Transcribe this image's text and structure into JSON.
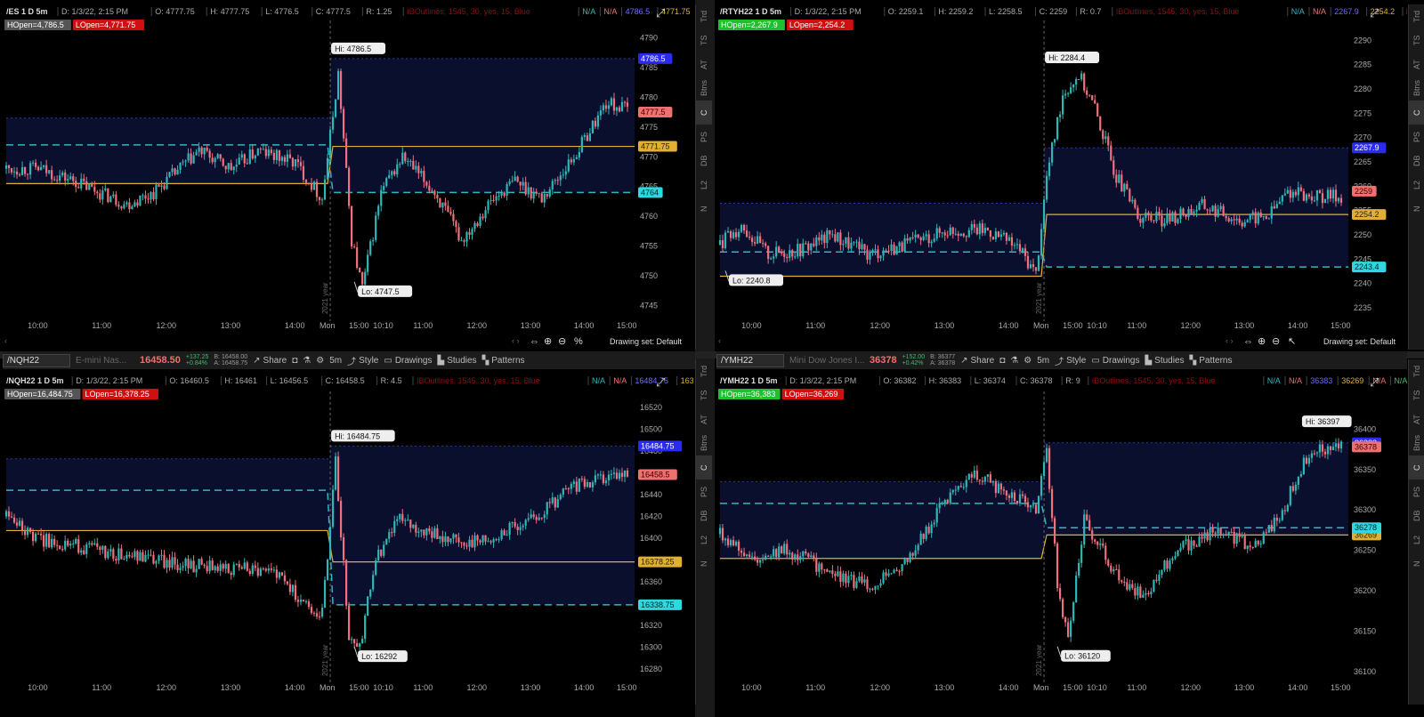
{
  "colors": {
    "bull": "#2fb7b5",
    "bear": "#f0707e",
    "hopen": "#dfb033",
    "lopen": "#2fb7c0",
    "rangefill": "#0a0f2e",
    "high_line": "#2b3aa8"
  },
  "panes": [
    {
      "id": "es",
      "header": {
        "symbol": "/ES 1 D 5m",
        "date": "D: 1/3/22, 2:15 PM",
        "open": "O: 4777.75",
        "high": "H: 4777.75",
        "low": "L: 4776.5",
        "close": "C: 4777.5",
        "range": "R: 1.25",
        "study": "IBOutlines, 1545, 30, yes, 15, Blue",
        "na1": "N/A",
        "na2": "N/A",
        "hi_badge": "4786.5",
        "last_badge": "4771.75",
        "na3": "N/A",
        "na4": "N/A"
      },
      "hopen": "HOpen=4,786.5",
      "lopen": "LOpen=4,771.75",
      "hi_label": "Hi: 4786.5",
      "lo_label": "Lo: 4747.5",
      "price_tags": {
        "high": "4786.5",
        "last": "4777.5",
        "hopen": "4771.75",
        "lopen": "4764"
      },
      "chart_data": {
        "type": "candlestick",
        "ylim": [
          4743,
          4792
        ],
        "yticks": [
          "4790",
          "4785",
          "4780",
          "4775",
          "4770",
          "4765",
          "4760",
          "4755",
          "4750",
          "4745"
        ],
        "xticks": [
          "10:00",
          "11:00",
          "12:00",
          "13:00",
          "14:00",
          "15:00",
          "Mon",
          "10:10",
          "11:00",
          "12:00",
          "13:00",
          "14:00",
          "15:00"
        ],
        "separator": "2021 year",
        "hi": 4786.5,
        "lo": 4747.5,
        "prev_high": 4776.5,
        "prev_dash": 4772,
        "prev_solid": 4765.5,
        "cur_high": 4786.5,
        "cur_solid": 4771.75,
        "cur_dash": 4764,
        "last": 4777.5,
        "anchors": [
          [
            0,
            4768
          ],
          [
            12,
            4768
          ],
          [
            25,
            4766
          ],
          [
            45,
            4762
          ],
          [
            55,
            4764
          ],
          [
            72,
            4771
          ],
          [
            84,
            4768
          ],
          [
            94,
            4771
          ],
          [
            108,
            4769
          ],
          [
            118,
            4763
          ],
          [
            124,
            4784
          ],
          [
            129,
            4756
          ],
          [
            133,
            4748
          ],
          [
            140,
            4764
          ],
          [
            148,
            4770
          ],
          [
            160,
            4764
          ],
          [
            170,
            4756
          ],
          [
            180,
            4762
          ],
          [
            190,
            4766
          ],
          [
            200,
            4763
          ],
          [
            212,
            4770
          ],
          [
            224,
            4779
          ],
          [
            232,
            4778
          ]
        ]
      }
    },
    {
      "id": "rty",
      "header": {
        "symbol": "/RTYH22 1 D 5m",
        "date": "D: 1/3/22, 2:15 PM",
        "open": "O: 2259.1",
        "high": "H: 2259.2",
        "low": "L: 2258.5",
        "close": "C: 2259",
        "range": "R: 0.7",
        "study": "IBOutlines, 1545, 30, yes, 15, Blue",
        "na1": "N/A",
        "na2": "N/A",
        "hi_badge": "2267.9",
        "last_badge": "2254.2",
        "na3": "N/A",
        "na4": "N/A"
      },
      "hopen": "HOpen=2,267.9",
      "lopen": "LOpen=2,254.2",
      "hi_label": "Hi: 2284.4",
      "lo_label": "Lo: 2240.8",
      "price_tags": {
        "high": "2267.9",
        "last": "2259",
        "hopen": "2254.2",
        "lopen": "2243.4"
      },
      "chart_data": {
        "type": "candlestick",
        "ylim": [
          2233,
          2293
        ],
        "yticks": [
          "2290",
          "2285",
          "2280",
          "2275",
          "2270",
          "2265",
          "2260",
          "2255",
          "2250",
          "2245",
          "2240",
          "2235"
        ],
        "xticks": [
          "10:00",
          "11:00",
          "12:00",
          "13:00",
          "14:00",
          "15:00",
          "Mon",
          "10:10",
          "11:00",
          "12:00",
          "13:00",
          "14:00",
          "15:00"
        ],
        "separator": "2021 year",
        "hi": 2284.4,
        "lo": 2240.8,
        "prev_high": 2256.5,
        "prev_dash": 2246.5,
        "prev_solid": 2241.5,
        "cur_high": 2267.9,
        "cur_solid": 2254.2,
        "cur_dash": 2243.4,
        "last": 2259,
        "anchors": [
          [
            0,
            2248
          ],
          [
            8,
            2252
          ],
          [
            18,
            2246
          ],
          [
            30,
            2247
          ],
          [
            42,
            2250
          ],
          [
            55,
            2246
          ],
          [
            70,
            2248
          ],
          [
            85,
            2251
          ],
          [
            100,
            2251
          ],
          [
            112,
            2247
          ],
          [
            118,
            2242
          ],
          [
            122,
            2262
          ],
          [
            128,
            2279
          ],
          [
            134,
            2283
          ],
          [
            140,
            2276
          ],
          [
            148,
            2262
          ],
          [
            156,
            2254
          ],
          [
            166,
            2253
          ],
          [
            180,
            2256
          ],
          [
            195,
            2253
          ],
          [
            205,
            2254
          ],
          [
            212,
            2259
          ],
          [
            218,
            2258
          ]
        ]
      }
    },
    {
      "id": "nq",
      "header": {
        "symbol": "/NQH22 1 D 5m",
        "date": "D: 1/3/22, 2:15 PM",
        "open": "O: 16460.5",
        "high": "H: 16461",
        "low": "L: 16456.5",
        "close": "C: 16458.5",
        "range": "R: 4.5",
        "study": "IBOutlines, 1545, 30, yes, 15, Blue",
        "na1": "N/A",
        "na2": "N/A",
        "hi_badge": "16484.75",
        "last_badge": "16378.25",
        "na3": "N/A",
        "na4": "N/A"
      },
      "hopen": "HOpen=16,484.75",
      "lopen": "LOpen=16,378.25",
      "hi_label": "Hi: 16484.75",
      "lo_label": "Lo: 16292",
      "price_tags": {
        "high": "16484.75",
        "last": "16458.5",
        "hopen": "16378.25",
        "lopen": "16338.75"
      },
      "chart_data": {
        "type": "candlestick",
        "ylim": [
          16270,
          16530
        ],
        "yticks": [
          "16520",
          "16500",
          "16480",
          "16460",
          "16440",
          "16420",
          "16400",
          "16380",
          "16360",
          "16340",
          "16320",
          "16300",
          "16280"
        ],
        "xticks": [
          "10:00",
          "11:00",
          "12:00",
          "13:00",
          "14:00",
          "15:00",
          "Mon",
          "10:10",
          "11:00",
          "12:00",
          "13:00",
          "14:00",
          "15:00"
        ],
        "separator": "2021 year",
        "hi": 16484.75,
        "lo": 16292,
        "prev_high": 16473,
        "prev_dash": 16444,
        "prev_solid": 16407,
        "cur_high": 16484.75,
        "cur_solid": 16378.25,
        "cur_dash": 16338.75,
        "last": 16458.5,
        "anchors": [
          [
            0,
            16420
          ],
          [
            10,
            16400
          ],
          [
            22,
            16395
          ],
          [
            40,
            16385
          ],
          [
            55,
            16380
          ],
          [
            70,
            16375
          ],
          [
            88,
            16372
          ],
          [
            100,
            16368
          ],
          [
            112,
            16340
          ],
          [
            118,
            16330
          ],
          [
            123,
            16470
          ],
          [
            128,
            16310
          ],
          [
            132,
            16300
          ],
          [
            138,
            16380
          ],
          [
            146,
            16420
          ],
          [
            158,
            16405
          ],
          [
            170,
            16395
          ],
          [
            185,
            16405
          ],
          [
            200,
            16425
          ],
          [
            212,
            16448
          ],
          [
            222,
            16455
          ],
          [
            228,
            16458
          ]
        ]
      }
    },
    {
      "id": "ym",
      "header": {
        "symbol": "/YMH22 1 D 5m",
        "date": "D: 1/3/22, 2:15 PM",
        "open": "O: 36382",
        "high": "H: 36383",
        "low": "L: 36374",
        "close": "C: 36378",
        "range": "R: 9",
        "study": "IBOutlines, 1545, 30, yes, 15, Blue",
        "na1": "N/A",
        "na2": "N/A",
        "hi_badge": "36383",
        "last_badge": "36269",
        "na3": "N/A",
        "na4": "N/A"
      },
      "hopen": "HOpen=36,383",
      "lopen": "LOpen=36,269",
      "hi_label": "Hi: 36397",
      "lo_label": "Lo: 36120",
      "price_tags": {
        "high": "36383",
        "last": "36378",
        "hopen": "36269",
        "lopen": "36278"
      },
      "chart_data": {
        "type": "candlestick",
        "ylim": [
          36090,
          36440
        ],
        "yticks": [
          "36400",
          "36350",
          "36300",
          "36250",
          "36200",
          "36150",
          "36100"
        ],
        "xticks": [
          "10:00",
          "11:00",
          "12:00",
          "13:00",
          "14:00",
          "15:00",
          "Mon",
          "10:10",
          "11:00",
          "12:00",
          "13:00",
          "14:00",
          "15:00"
        ],
        "separator": "2021 year",
        "hi": 36397,
        "lo": 36120,
        "prev_high": 36335,
        "prev_dash": 36308,
        "prev_solid": 36240,
        "cur_high": 36383,
        "cur_solid": 36269,
        "cur_dash": 36278,
        "last": 36378,
        "anchors": [
          [
            0,
            36270
          ],
          [
            12,
            36240
          ],
          [
            25,
            36250
          ],
          [
            40,
            36225
          ],
          [
            55,
            36205
          ],
          [
            70,
            36240
          ],
          [
            82,
            36300
          ],
          [
            95,
            36345
          ],
          [
            108,
            36320
          ],
          [
            118,
            36300
          ],
          [
            122,
            36370
          ],
          [
            126,
            36210
          ],
          [
            130,
            36140
          ],
          [
            136,
            36290
          ],
          [
            146,
            36230
          ],
          [
            158,
            36190
          ],
          [
            170,
            36250
          ],
          [
            185,
            36275
          ],
          [
            200,
            36255
          ],
          [
            210,
            36300
          ],
          [
            220,
            36370
          ],
          [
            228,
            36380
          ]
        ]
      }
    }
  ],
  "footers": [
    {
      "drawing_set": "Drawing set: Default"
    },
    {
      "drawing_set": "Drawing set: Default"
    }
  ],
  "toolbars": [
    {
      "symbol": "/NQH22",
      "desc": "E-mini Nas...",
      "price": "16458.50",
      "chg1": "+137.25",
      "chg2": "+0.84%",
      "bid": "B: 16458.00",
      "ask": "A: 16458.75",
      "interval": "5m",
      "share": "Share",
      "style": "Style",
      "drawings": "Drawings",
      "studies": "Studies",
      "patterns": "Patterns"
    },
    {
      "symbol": "/YMH22",
      "desc": "Mini Dow Jones I...",
      "price": "36378",
      "chg1": "+152.00",
      "chg2": "+0.42%",
      "bid": "B: 36377",
      "ask": "A: 36378",
      "interval": "5m",
      "share": "Share",
      "style": "Style",
      "drawings": "Drawings",
      "studies": "Studies",
      "patterns": "Patterns"
    }
  ],
  "side_tabs": [
    "Trd",
    "TS",
    "AT",
    "Btns",
    "C",
    "PS",
    "DB",
    "L2",
    "N"
  ]
}
